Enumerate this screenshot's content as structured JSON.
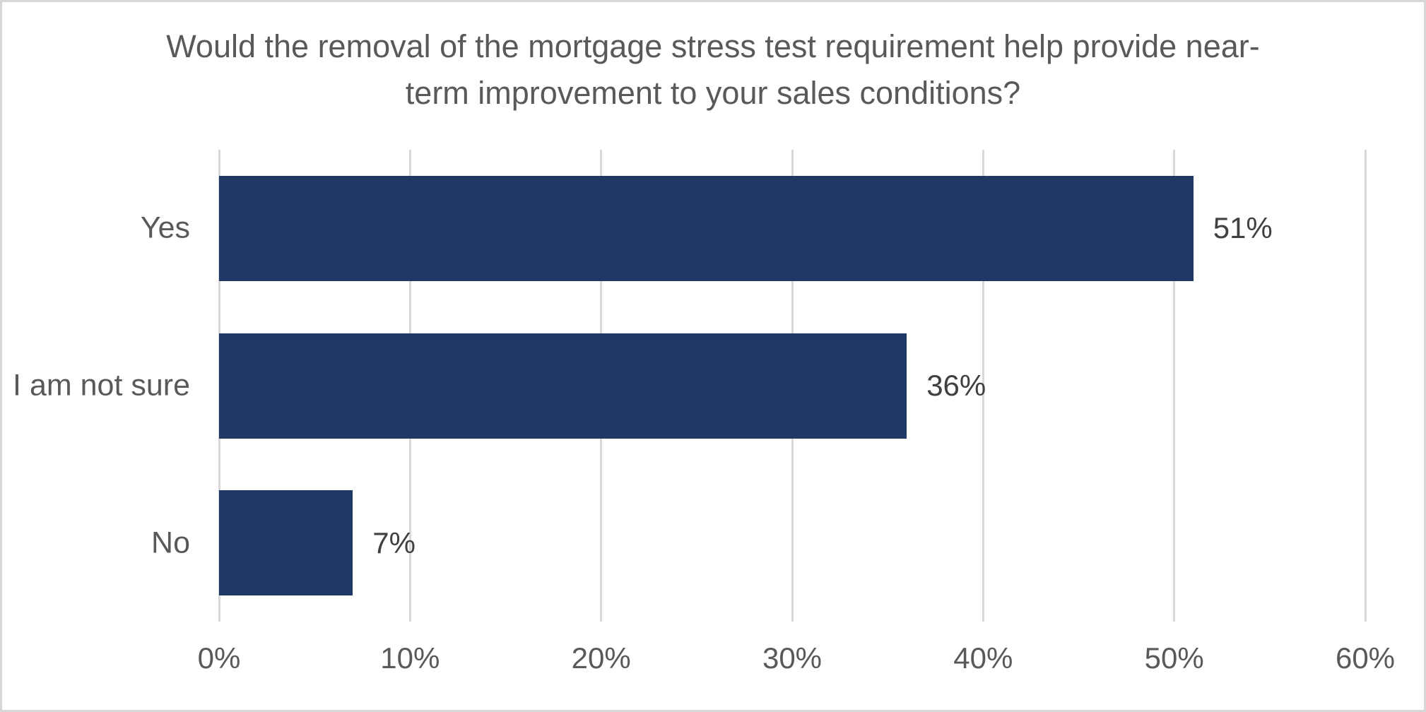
{
  "chart_data": {
    "type": "bar",
    "orientation": "horizontal",
    "title": "Would the removal of the mortgage stress test requirement help provide near-term improvement to your sales conditions?",
    "categories": [
      "Yes",
      "I am not sure",
      "No"
    ],
    "values": [
      51,
      36,
      7
    ],
    "data_labels": [
      "51%",
      "36%",
      "7%"
    ],
    "x_axis": {
      "tick_labels": [
        "0%",
        "10%",
        "20%",
        "30%",
        "40%",
        "50%",
        "60%"
      ],
      "min": 0,
      "max": 60,
      "tick_step": 10
    },
    "ylabel": "",
    "xlabel": "",
    "legend": "none",
    "grid": "vertical-major-only",
    "colors": {
      "bar": "#1F3864",
      "title_text": "#595959",
      "axis_text": "#595959",
      "data_label_text": "#404040",
      "gridline": "#D9D9D9",
      "chart_border": "#D7D7D7",
      "background": "#FFFFFF"
    }
  }
}
